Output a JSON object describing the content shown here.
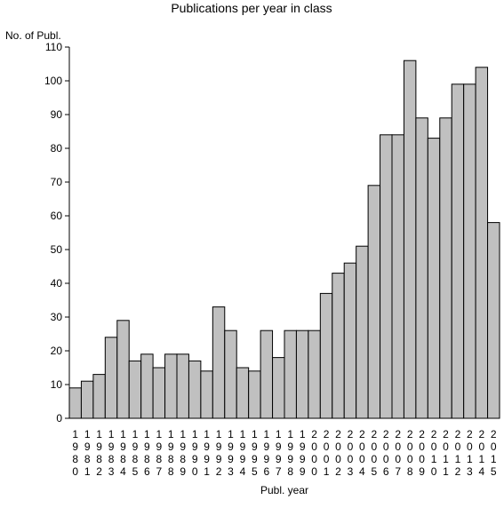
{
  "chart_data": {
    "type": "bar",
    "title": "Publications per year in class",
    "ylabel": "No. of Publ.",
    "xlabel": "Publ. year",
    "ylim": [
      0,
      110
    ],
    "yticks": [
      0,
      10,
      20,
      30,
      40,
      50,
      60,
      70,
      80,
      90,
      100,
      110
    ],
    "categories": [
      "1980",
      "1981",
      "1982",
      "1983",
      "1984",
      "1985",
      "1986",
      "1987",
      "1988",
      "1989",
      "1990",
      "1991",
      "1992",
      "1993",
      "1994",
      "1995",
      "1996",
      "1997",
      "1998",
      "1999",
      "2000",
      "2001",
      "2002",
      "2003",
      "2004",
      "2005",
      "2006",
      "2007",
      "2008",
      "2009",
      "2010",
      "2011",
      "2012",
      "2013",
      "2014",
      "2015"
    ],
    "values": [
      9,
      11,
      13,
      24,
      29,
      17,
      19,
      15,
      19,
      19,
      17,
      14,
      33,
      26,
      15,
      14,
      26,
      18,
      26,
      26,
      26,
      37,
      43,
      46,
      51,
      69,
      84,
      84,
      106,
      89,
      83,
      89,
      99,
      99,
      104,
      58
    ],
    "bar_color": "#c0c0c0",
    "grid": false,
    "legend": "none"
  }
}
